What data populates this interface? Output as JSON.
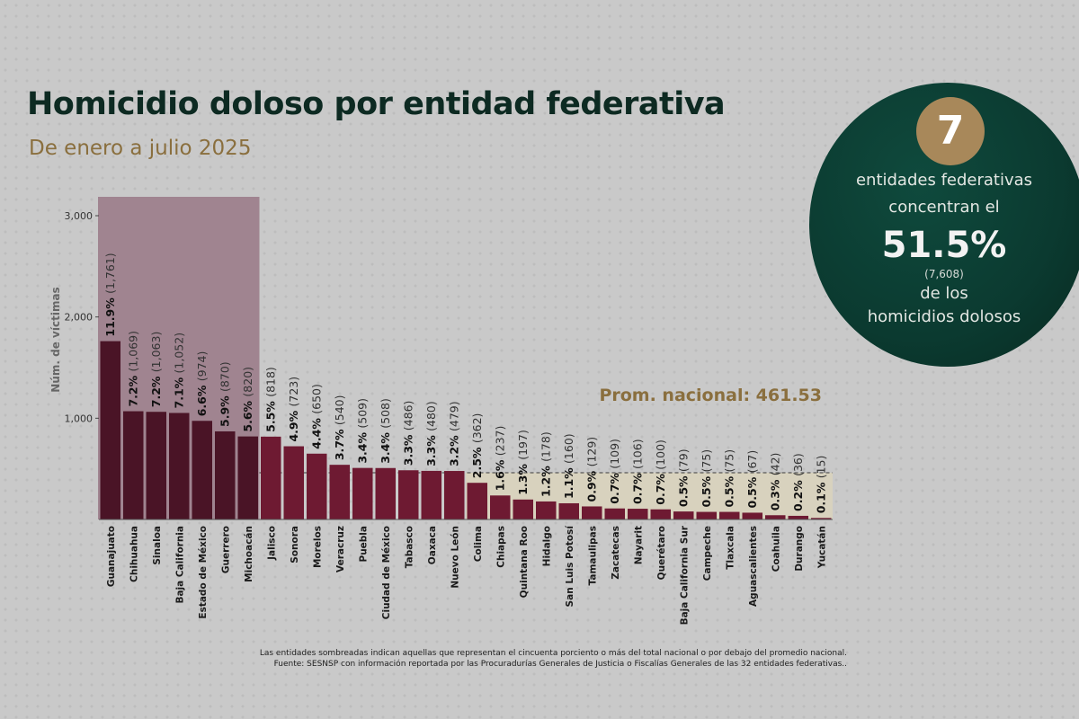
{
  "header": {
    "title": "Homicidio doloso por entidad federativa",
    "subtitle": "De enero a julio 2025"
  },
  "badge": {
    "number": "7",
    "line1": "entidades federativas",
    "line2": "concentran el",
    "percent": "51.5%",
    "count": "(7,608)",
    "line3": "de los",
    "line4": "homicidios dolosos"
  },
  "footnotes": {
    "note": "Las entidades sombreadas indican aquellas que representan el cincuenta porciento o más del total nacional o por debajo del promedio nacional.",
    "source": "Fuente: SESNSP con información reportada por las Procuradurías Generales de Justicia o Fiscalías Generales de las 32 entidades federativas.."
  },
  "colors": {
    "dark_bar": "#4a1426",
    "bar": "#6e1a32",
    "top_highlight": "#a08490",
    "avg_highlight": "#d8d2be",
    "avg_text": "#8a6f3e"
  },
  "chart_data": {
    "type": "bar",
    "ylabel": "Núm. de víctimas",
    "ylim": [
      0,
      3000
    ],
    "yticks": [
      1000,
      2000,
      3000
    ],
    "ytick_labels": [
      "1,000",
      "2,000",
      "3,000"
    ],
    "average_label": "Prom. nacional: 461.53",
    "average_value": 461.53,
    "highlighted_top_count": 7,
    "categories": [
      "Guanajuato",
      "Chihuahua",
      "Sinaloa",
      "Baja California",
      "Estado de México",
      "Guerrero",
      "Michoacán",
      "Jalisco",
      "Sonora",
      "Morelos",
      "Veracruz",
      "Puebla",
      "Ciudad de México",
      "Tabasco",
      "Oaxaca",
      "Nuevo León",
      "Colima",
      "Chiapas",
      "Quintana Roo",
      "Hidalgo",
      "San Luis Potosí",
      "Tamaulipas",
      "Zacatecas",
      "Nayarit",
      "Querétaro",
      "Baja California Sur",
      "Campeche",
      "Tlaxcala",
      "Aguascalientes",
      "Coahuila",
      "Durango",
      "Yucatán"
    ],
    "values": [
      1761,
      1069,
      1063,
      1052,
      974,
      870,
      820,
      818,
      723,
      650,
      540,
      509,
      508,
      486,
      480,
      479,
      362,
      237,
      197,
      178,
      160,
      129,
      109,
      106,
      100,
      79,
      75,
      75,
      67,
      42,
      36,
      15
    ],
    "percents": [
      "11.9%",
      "7.2%",
      "7.2%",
      "7.1%",
      "6.6%",
      "5.9%",
      "5.6%",
      "5.5%",
      "4.9%",
      "4.4%",
      "3.7%",
      "3.4%",
      "3.4%",
      "3.3%",
      "3.3%",
      "3.2%",
      "2.5%",
      "1.6%",
      "1.3%",
      "1.2%",
      "1.1%",
      "0.9%",
      "0.7%",
      "0.7%",
      "0.7%",
      "0.5%",
      "0.5%",
      "0.5%",
      "0.5%",
      "0.3%",
      "0.2%",
      "0.1%"
    ],
    "counts": [
      "(1,761)",
      "(1,069)",
      "(1,063)",
      "(1,052)",
      "(974)",
      "(870)",
      "(820)",
      "(818)",
      "(723)",
      "(650)",
      "(540)",
      "(509)",
      "(508)",
      "(486)",
      "(480)",
      "(479)",
      "(362)",
      "(237)",
      "(197)",
      "(178)",
      "(160)",
      "(129)",
      "(109)",
      "(106)",
      "(100)",
      "(79)",
      "(75)",
      "(75)",
      "(67)",
      "(42)",
      "(36)",
      "(15)"
    ]
  }
}
